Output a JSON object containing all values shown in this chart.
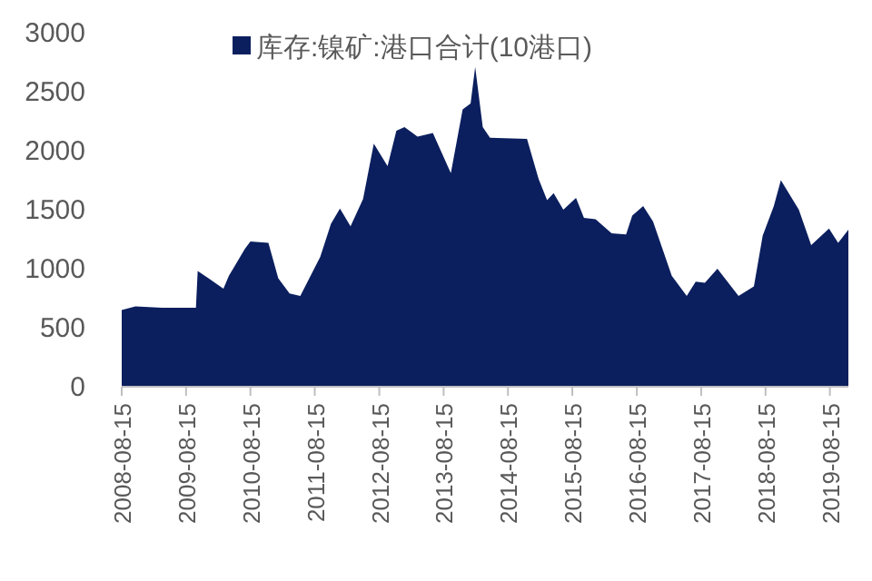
{
  "chart_data": {
    "type": "area",
    "legend": "top",
    "grid": false,
    "xlim": [
      "2008-08-15",
      "2019-11-28"
    ],
    "ylim": [
      0,
      3000
    ],
    "yticks": [
      0,
      500,
      1000,
      1500,
      2000,
      2500,
      3000
    ],
    "xticks": [
      "2008-08-15",
      "2009-08-15",
      "2010-08-15",
      "2011-08-15",
      "2012-08-15",
      "2013-08-15",
      "2014-08-15",
      "2015-08-15",
      "2016-08-15",
      "2017-08-15",
      "2018-08-15",
      "2019-08-15"
    ],
    "series": [
      {
        "name": "库存:镍矿:港口合计(10港口)",
        "color": "#0b1f5e",
        "x": [
          "2008-08-15",
          "2008-11-01",
          "2009-04-01",
          "2009-10-10",
          "2009-10-20",
          "2009-12-20",
          "2010-03-15",
          "2010-04-15",
          "2010-07-15",
          "2010-08-15",
          "2010-11-25",
          "2011-01-20",
          "2011-03-25",
          "2011-05-25",
          "2011-09-15",
          "2011-11-15",
          "2012-01-05",
          "2012-03-05",
          "2012-05-15",
          "2012-07-15",
          "2012-10-01",
          "2012-11-20",
          "2013-01-05",
          "2013-03-20",
          "2013-06-15",
          "2013-09-25",
          "2013-12-01",
          "2014-01-15",
          "2014-02-10",
          "2014-03-25",
          "2014-05-05",
          "2014-12-01",
          "2015-02-05",
          "2015-03-25",
          "2015-05-01",
          "2015-06-25",
          "2015-09-05",
          "2015-10-20",
          "2015-12-25",
          "2016-03-25",
          "2016-06-15",
          "2016-07-20",
          "2016-09-20",
          "2016-11-15",
          "2017-03-01",
          "2017-05-25",
          "2017-07-15",
          "2017-09-05",
          "2017-11-15",
          "2018-03-15",
          "2018-06-10",
          "2018-07-30",
          "2018-10-01",
          "2018-11-10",
          "2019-02-20",
          "2019-05-01",
          "2019-08-10",
          "2019-10-01",
          "2019-11-28"
        ],
        "values": [
          650,
          680,
          670,
          670,
          980,
          920,
          830,
          940,
          1170,
          1230,
          1220,
          920,
          790,
          770,
          1100,
          1380,
          1510,
          1360,
          1590,
          2060,
          1870,
          2170,
          2200,
          2120,
          2150,
          1810,
          2350,
          2400,
          2710,
          2200,
          2110,
          2100,
          1760,
          1580,
          1640,
          1500,
          1600,
          1430,
          1420,
          1300,
          1290,
          1450,
          1530,
          1400,
          940,
          770,
          890,
          880,
          1000,
          770,
          850,
          1280,
          1530,
          1750,
          1500,
          1200,
          1340,
          1220,
          1330
        ]
      }
    ]
  }
}
